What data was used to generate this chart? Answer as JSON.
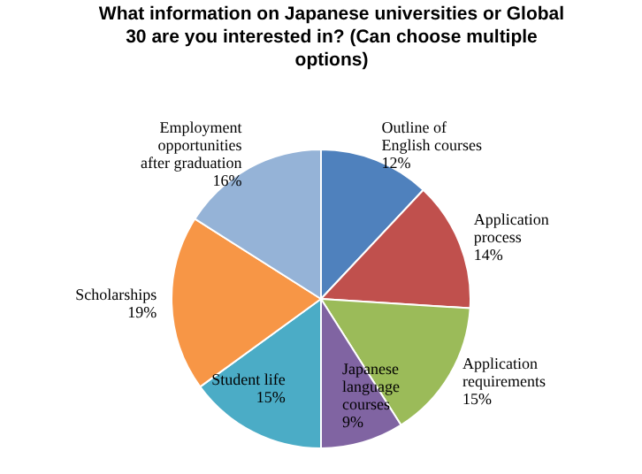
{
  "chart_data": {
    "type": "pie",
    "title": "What  information on Japanese universities or Global 30 are you interested in? (Can choose multiple options)",
    "categories": [
      "Outline of English courses",
      "Application process",
      "Application requirements",
      "Japanese language courses",
      "Student life",
      "Scholarships",
      "Employment opportunities after graduation"
    ],
    "values": [
      12,
      14,
      15,
      9,
      15,
      19,
      16
    ],
    "value_labels": [
      "12%",
      "14%",
      "15%",
      "9%",
      "15%",
      "19%",
      "16%"
    ],
    "colors": [
      "#4f81bd",
      "#c0504d",
      "#9bbb59",
      "#8064a2",
      "#4bacc6",
      "#f79646",
      "#95b3d7"
    ],
    "legend": false
  }
}
